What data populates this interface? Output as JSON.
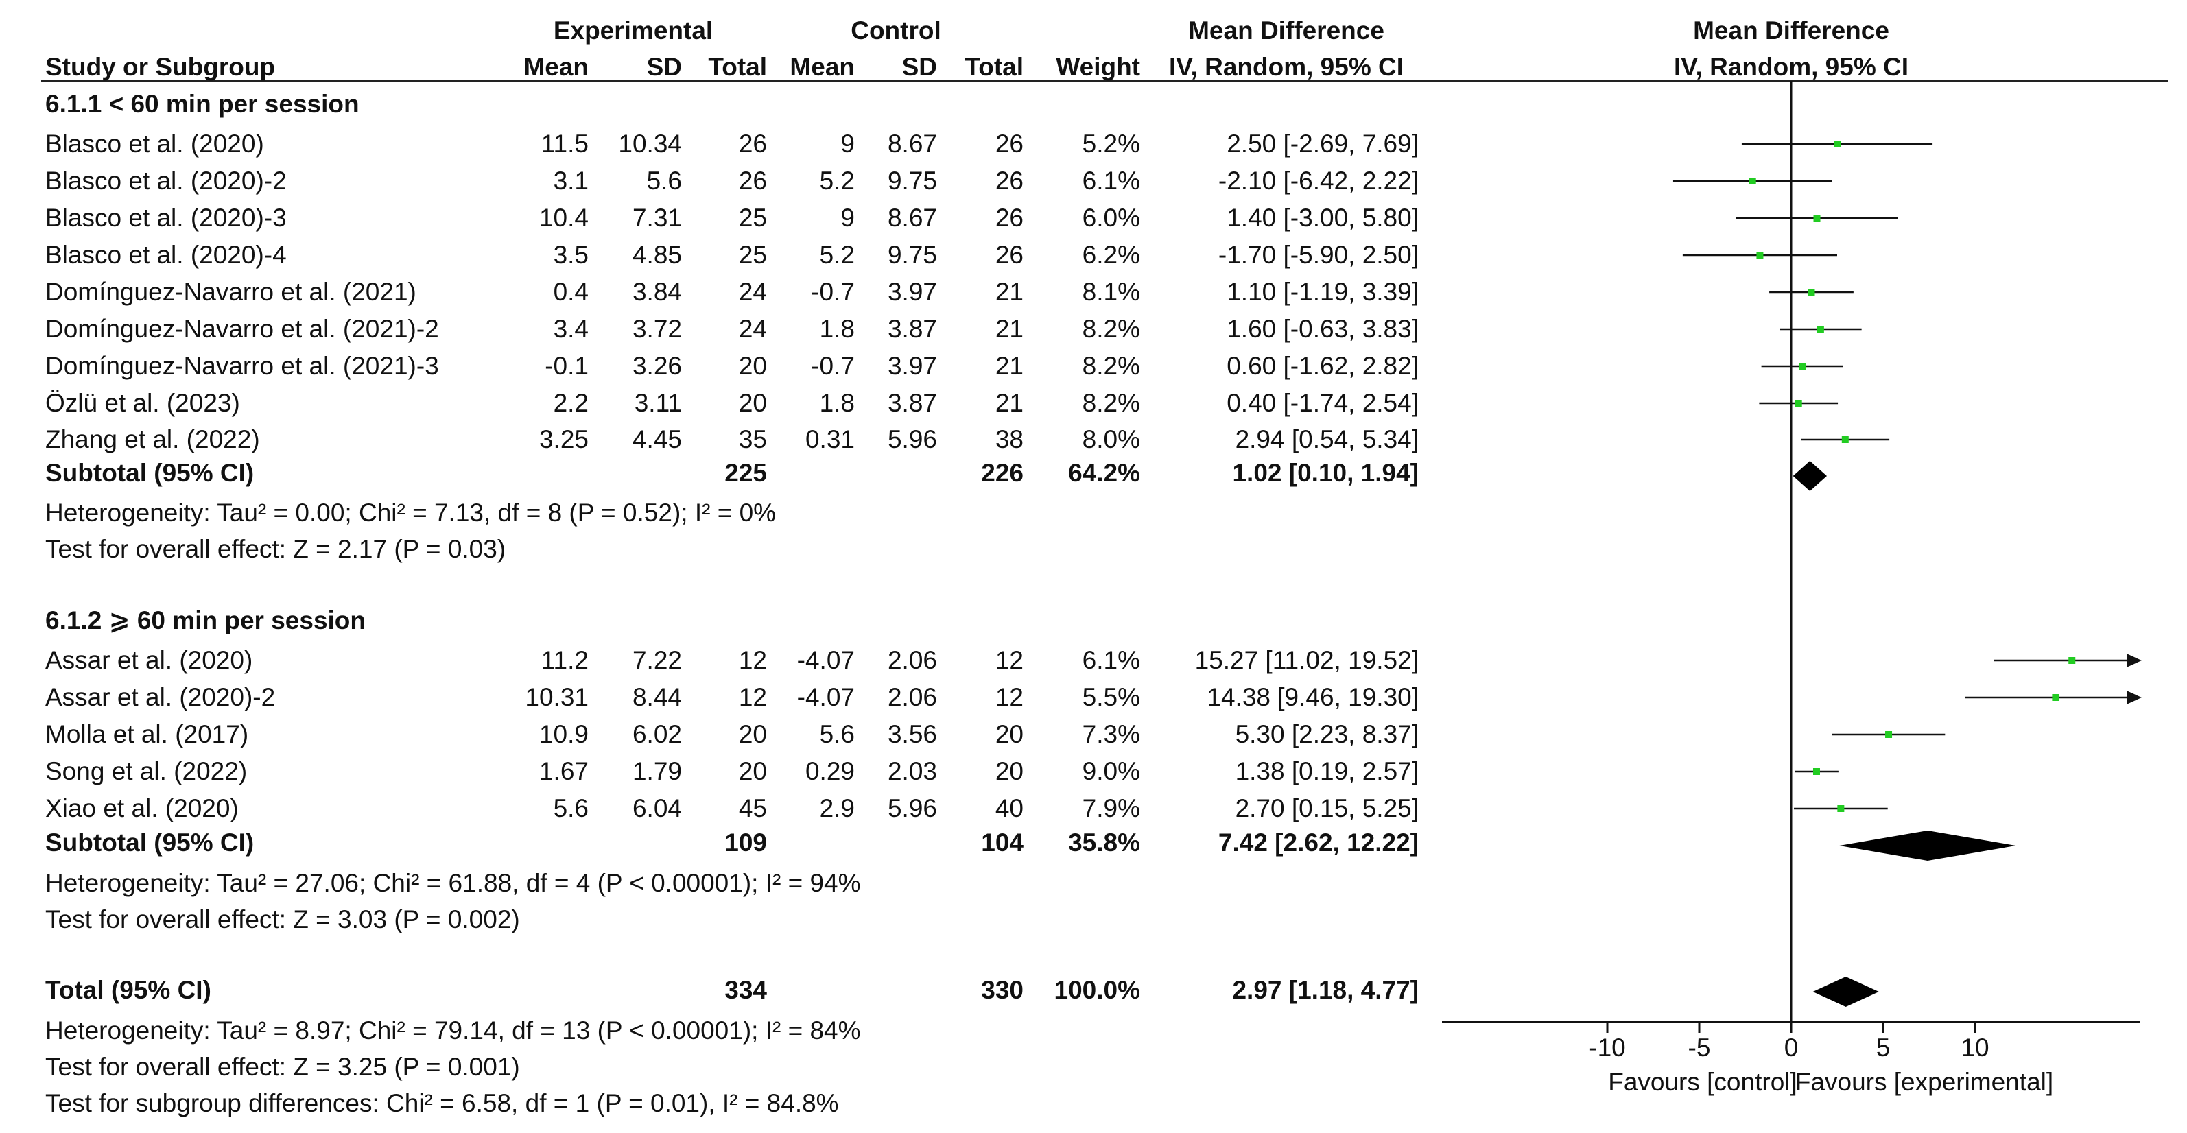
{
  "header": {
    "experimental": "Experimental",
    "control": "Control",
    "md_col": "Mean Difference",
    "md_col_sub": "IV, Random, 95% CI",
    "md_plot": "Mean Difference",
    "md_plot_sub": "IV, Random, 95% CI",
    "study": "Study or Subgroup",
    "mean_e": "Mean",
    "sd_e": "SD",
    "total_e": "Total",
    "mean_c": "Mean",
    "sd_c": "SD",
    "total_c": "Total",
    "weight": "Weight"
  },
  "subgroups": [
    {
      "title": "6.1.1 < 60 min per session",
      "studies": [
        {
          "name": "Blasco et al. (2020)",
          "mean_e": "11.5",
          "sd_e": "10.34",
          "total_e": "26",
          "mean_c": "9",
          "sd_c": "8.67",
          "total_c": "26",
          "weight": "5.2%",
          "ci": "2.50 [-2.69, 7.69]"
        },
        {
          "name": "Blasco et al. (2020)-2",
          "mean_e": "3.1",
          "sd_e": "5.6",
          "total_e": "26",
          "mean_c": "5.2",
          "sd_c": "9.75",
          "total_c": "26",
          "weight": "6.1%",
          "ci": "-2.10 [-6.42, 2.22]"
        },
        {
          "name": "Blasco et al. (2020)-3",
          "mean_e": "10.4",
          "sd_e": "7.31",
          "total_e": "25",
          "mean_c": "9",
          "sd_c": "8.67",
          "total_c": "26",
          "weight": "6.0%",
          "ci": "1.40 [-3.00, 5.80]"
        },
        {
          "name": "Blasco et al. (2020)-4",
          "mean_e": "3.5",
          "sd_e": "4.85",
          "total_e": "25",
          "mean_c": "5.2",
          "sd_c": "9.75",
          "total_c": "26",
          "weight": "6.2%",
          "ci": "-1.70 [-5.90, 2.50]"
        },
        {
          "name": "Domínguez-Navarro et al. (2021)",
          "mean_e": "0.4",
          "sd_e": "3.84",
          "total_e": "24",
          "mean_c": "-0.7",
          "sd_c": "3.97",
          "total_c": "21",
          "weight": "8.1%",
          "ci": "1.10 [-1.19, 3.39]"
        },
        {
          "name": "Domínguez-Navarro et al. (2021)-2",
          "mean_e": "3.4",
          "sd_e": "3.72",
          "total_e": "24",
          "mean_c": "1.8",
          "sd_c": "3.87",
          "total_c": "21",
          "weight": "8.2%",
          "ci": "1.60 [-0.63, 3.83]"
        },
        {
          "name": "Domínguez-Navarro et al. (2021)-3",
          "mean_e": "-0.1",
          "sd_e": "3.26",
          "total_e": "20",
          "mean_c": "-0.7",
          "sd_c": "3.97",
          "total_c": "21",
          "weight": "8.2%",
          "ci": "0.60 [-1.62, 2.82]"
        },
        {
          "name": "Özlü et al. (2023)",
          "mean_e": "2.2",
          "sd_e": "3.11",
          "total_e": "20",
          "mean_c": "1.8",
          "sd_c": "3.87",
          "total_c": "21",
          "weight": "8.2%",
          "ci": "0.40 [-1.74, 2.54]"
        },
        {
          "name": "Zhang et al. (2022)",
          "mean_e": "3.25",
          "sd_e": "4.45",
          "total_e": "35",
          "mean_c": "0.31",
          "sd_c": "5.96",
          "total_c": "38",
          "weight": "8.0%",
          "ci": "2.94 [0.54, 5.34]"
        }
      ],
      "subtotal": {
        "label": "Subtotal (95% CI)",
        "total_e": "225",
        "total_c": "226",
        "weight": "64.2%",
        "ci": "1.02 [0.10, 1.94]"
      },
      "heterogeneity": "Heterogeneity: Tau² = 0.00; Chi² = 7.13, df = 8 (P = 0.52); I² = 0%",
      "overall": "Test for overall effect: Z = 2.17 (P = 0.03)"
    },
    {
      "title": "6.1.2 ⩾ 60 min per session",
      "studies": [
        {
          "name": "Assar et al. (2020)",
          "mean_e": "11.2",
          "sd_e": "7.22",
          "total_e": "12",
          "mean_c": "-4.07",
          "sd_c": "2.06",
          "total_c": "12",
          "weight": "6.1%",
          "ci": "15.27 [11.02, 19.52]"
        },
        {
          "name": "Assar et al. (2020)-2",
          "mean_e": "10.31",
          "sd_e": "8.44",
          "total_e": "12",
          "mean_c": "-4.07",
          "sd_c": "2.06",
          "total_c": "12",
          "weight": "5.5%",
          "ci": "14.38 [9.46, 19.30]"
        },
        {
          "name": "Molla et al. (2017)",
          "mean_e": "10.9",
          "sd_e": "6.02",
          "total_e": "20",
          "mean_c": "5.6",
          "sd_c": "3.56",
          "total_c": "20",
          "weight": "7.3%",
          "ci": "5.30 [2.23, 8.37]"
        },
        {
          "name": "Song et al. (2022)",
          "mean_e": "1.67",
          "sd_e": "1.79",
          "total_e": "20",
          "mean_c": "0.29",
          "sd_c": "2.03",
          "total_c": "20",
          "weight": "9.0%",
          "ci": "1.38 [0.19, 2.57]"
        },
        {
          "name": "Xiao et al. (2020)",
          "mean_e": "5.6",
          "sd_e": "6.04",
          "total_e": "45",
          "mean_c": "2.9",
          "sd_c": "5.96",
          "total_c": "40",
          "weight": "7.9%",
          "ci": "2.70 [0.15, 5.25]"
        }
      ],
      "subtotal": {
        "label": "Subtotal (95% CI)",
        "total_e": "109",
        "total_c": "104",
        "weight": "35.8%",
        "ci": "7.42 [2.62, 12.22]"
      },
      "heterogeneity": "Heterogeneity: Tau² = 27.06; Chi² = 61.88, df = 4 (P < 0.00001); I² = 94%",
      "overall": "Test for overall effect: Z = 3.03 (P = 0.002)"
    }
  ],
  "total": {
    "label": "Total (95% CI)",
    "total_e": "334",
    "total_c": "330",
    "weight": "100.0%",
    "ci": "2.97 [1.18, 4.77]",
    "heterogeneity": "Heterogeneity: Tau² = 8.97; Chi² = 79.14, df = 13 (P < 0.00001); I² = 84%",
    "overall": "Test for overall effect: Z = 3.25 (P = 0.001)",
    "subgroup_diff": "Test for subgroup differences: Chi² = 6.58, df = 1 (P = 0.01), I² = 84.8%"
  },
  "axis": {
    "ticks": [
      "-10",
      "-5",
      "0",
      "5",
      "10"
    ],
    "favours_left": "Favours [control]",
    "favours_right": "Favours [experimental]"
  },
  "colors": {
    "square": "#22cc22",
    "line": "#111111",
    "diamond": "#000000"
  },
  "chart_data": {
    "type": "forest",
    "xlim": [
      -10,
      19
    ],
    "xticks": [
      -10,
      -5,
      0,
      5,
      10
    ],
    "points": [
      {
        "study": "Blasco et al. (2020)",
        "md": 2.5,
        "lo": -2.69,
        "hi": 7.69
      },
      {
        "study": "Blasco et al. (2020)-2",
        "md": -2.1,
        "lo": -6.42,
        "hi": 2.22
      },
      {
        "study": "Blasco et al. (2020)-3",
        "md": 1.4,
        "lo": -3.0,
        "hi": 5.8
      },
      {
        "study": "Blasco et al. (2020)-4",
        "md": -1.7,
        "lo": -5.9,
        "hi": 2.5
      },
      {
        "study": "Domínguez-Navarro et al. (2021)",
        "md": 1.1,
        "lo": -1.19,
        "hi": 3.39
      },
      {
        "study": "Domínguez-Navarro et al. (2021)-2",
        "md": 1.6,
        "lo": -0.63,
        "hi": 3.83
      },
      {
        "study": "Domínguez-Navarro et al. (2021)-3",
        "md": 0.6,
        "lo": -1.62,
        "hi": 2.82
      },
      {
        "study": "Özlü et al. (2023)",
        "md": 0.4,
        "lo": -1.74,
        "hi": 2.54
      },
      {
        "study": "Zhang et al. (2022)",
        "md": 2.94,
        "lo": 0.54,
        "hi": 5.34
      },
      {
        "study": "Subtotal (95% CI)",
        "md": 1.02,
        "lo": 0.1,
        "hi": 1.94,
        "diamond": true
      },
      {
        "study": "Assar et al. (2020)",
        "md": 15.27,
        "lo": 11.02,
        "hi": 19.52
      },
      {
        "study": "Assar et al. (2020)-2",
        "md": 14.38,
        "lo": 9.46,
        "hi": 19.3
      },
      {
        "study": "Molla et al. (2017)",
        "md": 5.3,
        "lo": 2.23,
        "hi": 8.37
      },
      {
        "study": "Song et al. (2022)",
        "md": 1.38,
        "lo": 0.19,
        "hi": 2.57
      },
      {
        "study": "Xiao et al. (2020)",
        "md": 2.7,
        "lo": 0.15,
        "hi": 5.25
      },
      {
        "study": "Subtotal (95% CI)",
        "md": 7.42,
        "lo": 2.62,
        "hi": 12.22,
        "diamond": true
      },
      {
        "study": "Total (95% CI)",
        "md": 2.97,
        "lo": 1.18,
        "hi": 4.77,
        "diamond": true
      }
    ]
  }
}
